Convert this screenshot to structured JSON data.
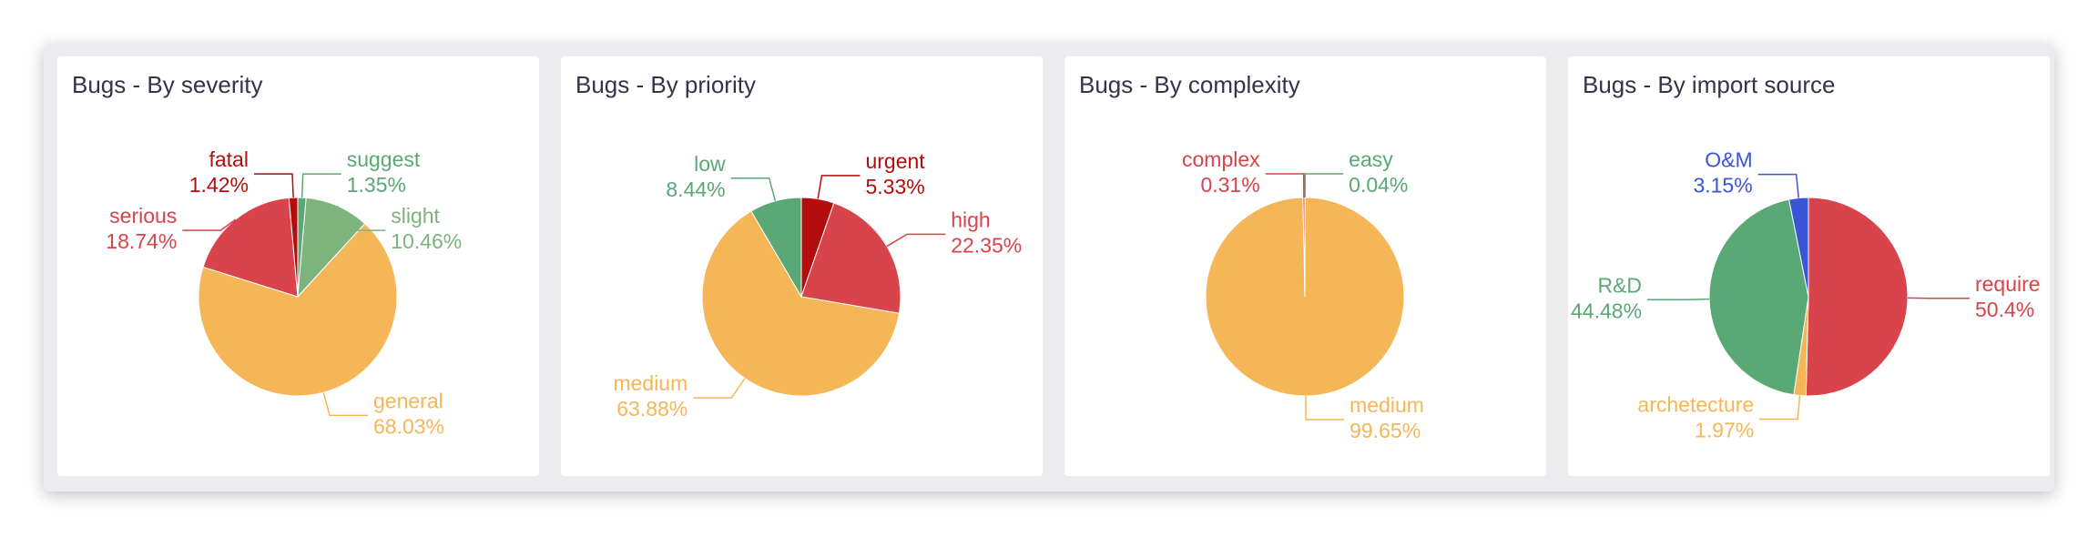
{
  "chart_data": [
    {
      "type": "pie",
      "title": "Bugs - By severity",
      "categories": [
        "suggest",
        "slight",
        "general",
        "serious",
        "fatal"
      ],
      "values": [
        1.35,
        10.46,
        68.03,
        18.74,
        1.42
      ],
      "value_labels": [
        "1.35%",
        "10.46%",
        "68.03%",
        "18.74%",
        "1.42%"
      ],
      "colors": [
        "#5aa876",
        "#7db37d",
        "#f4b656",
        "#d9434b",
        "#b50d0d"
      ]
    },
    {
      "type": "pie",
      "title": "Bugs - By priority",
      "categories": [
        "urgent",
        "high",
        "medium",
        "low"
      ],
      "values": [
        5.33,
        22.35,
        63.88,
        8.44
      ],
      "value_labels": [
        "5.33%",
        "22.35%",
        "63.88%",
        "8.44%"
      ],
      "colors": [
        "#b50d0d",
        "#d9434b",
        "#f4b656",
        "#5aa876"
      ]
    },
    {
      "type": "pie",
      "title": "Bugs - By complexity",
      "categories": [
        "easy",
        "medium",
        "complex"
      ],
      "values": [
        0.04,
        99.65,
        0.31
      ],
      "value_labels": [
        "0.04%",
        "99.65%",
        "0.31%"
      ],
      "colors": [
        "#5aa876",
        "#f4b656",
        "#d9434b"
      ]
    },
    {
      "type": "pie",
      "title": "Bugs - By import source",
      "categories": [
        "require",
        "archetecture",
        "R&D",
        "O&M"
      ],
      "values": [
        50.4,
        1.97,
        44.48,
        3.15
      ],
      "value_labels": [
        "50.4%",
        "1.97%",
        "44.48%",
        "3.15%"
      ],
      "colors": [
        "#d9434b",
        "#f4b656",
        "#5aa876",
        "#3a55d8"
      ]
    }
  ]
}
